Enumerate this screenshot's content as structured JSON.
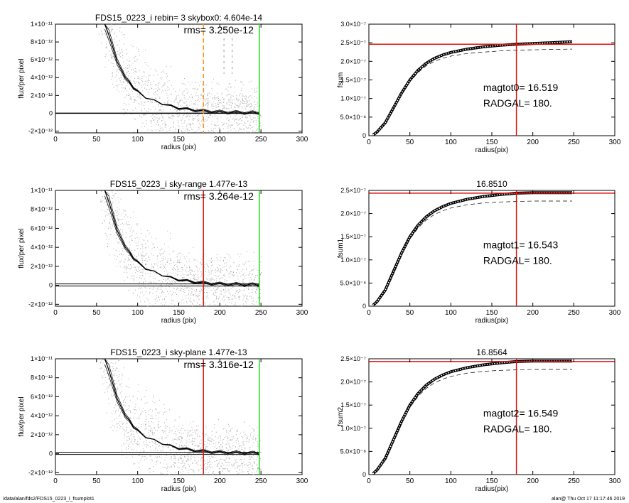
{
  "footer": {
    "left": "/data/alan/fds2/FDS15_0223_i_fsumplot1",
    "right": "alan@  Thu Oct 17 11:17:46 2019"
  },
  "colors": {
    "scatter": "#aaaaaa",
    "orange": "#ff8c1a",
    "green": "#22dd22",
    "red": "#dd1111"
  },
  "chart_data": [
    {
      "type": "scatter",
      "title": "FDS15_0223_i rebin= 3    skybox0:  4.604e-14",
      "annotation": "rms= 3.250e-12",
      "xlabel": "radius (pix)",
      "ylabel": "flux/per pixel",
      "xlim": [
        0,
        300
      ],
      "ylim": [
        -2.2e-12,
        1e-11
      ],
      "xticks": [
        0,
        50,
        100,
        150,
        200,
        250,
        300
      ],
      "yticks": [
        -2e-12,
        0,
        2e-12,
        4e-12,
        6e-12,
        8e-12,
        1e-11
      ],
      "yticklabels": [
        "-2×10⁻¹²",
        "0",
        "2×10⁻¹²",
        "4×10⁻¹²",
        "6×10⁻¹²",
        "8×10⁻¹²",
        "1×10⁻¹¹"
      ],
      "vlines": [
        {
          "x": 180,
          "color": "orange",
          "dashed": true
        },
        {
          "x": 248,
          "color": "green",
          "dashed": false
        }
      ],
      "hline": {
        "y": 0,
        "double": false
      },
      "dashed_marks": [
        205,
        215
      ],
      "profile_points": [
        [
          60,
          1e-11
        ],
        [
          65,
          8.9e-12
        ],
        [
          70,
          7.2e-12
        ],
        [
          75,
          5.9e-12
        ],
        [
          80,
          4.8e-12
        ],
        [
          85,
          4.1e-12
        ],
        [
          90,
          3.4e-12
        ],
        [
          95,
          2.9e-12
        ],
        [
          100,
          2.4e-12
        ],
        [
          110,
          1.8e-12
        ],
        [
          120,
          1.4e-12
        ],
        [
          130,
          1.1e-12
        ],
        [
          140,
          8e-13
        ],
        [
          150,
          6e-13
        ],
        [
          160,
          4.5e-13
        ],
        [
          170,
          3.5e-13
        ],
        [
          180,
          2.5e-13
        ],
        [
          190,
          2e-13
        ],
        [
          200,
          1.5e-13
        ],
        [
          210,
          1.2e-13
        ],
        [
          220,
          1e-13
        ],
        [
          230,
          8e-14
        ],
        [
          240,
          6e-14
        ],
        [
          248,
          5e-14
        ]
      ]
    },
    {
      "type": "line",
      "title": "",
      "annotation_lines": [
        "magtot0=  16.519",
        "RADGAL=    180."
      ],
      "xlabel": "radius(pix)",
      "ylabel": "fsum",
      "xlim": [
        0,
        300
      ],
      "ylim": [
        0,
        3e-07
      ],
      "xticks": [
        0,
        50,
        100,
        150,
        200,
        250,
        300
      ],
      "yticks": [
        0,
        5e-08,
        1e-07,
        1.5e-07,
        2e-07,
        2.5e-07,
        3e-07
      ],
      "yticklabels": [
        "0",
        "5.0×10⁻⁸",
        "1.0×10⁻⁷",
        "1.5×10⁻⁷",
        "2.0×10⁻⁷",
        "2.5×10⁻⁷",
        "3.0×10⁻⁷"
      ],
      "vline_x": 180,
      "hline_y": 2.46e-07,
      "x": [
        5,
        10,
        20,
        30,
        40,
        50,
        60,
        70,
        80,
        90,
        100,
        120,
        140,
        160,
        180,
        200,
        220,
        248
      ],
      "curve": [
        2e-09,
        1e-08,
        3.5e-08,
        7.5e-08,
        1.15e-07,
        1.5e-07,
        1.76e-07,
        1.95e-07,
        2.08e-07,
        2.17e-07,
        2.24e-07,
        2.33e-07,
        2.39e-07,
        2.43e-07,
        2.46e-07,
        2.48e-07,
        2.5e-07,
        2.53e-07
      ],
      "dashed": [
        2e-09,
        1e-08,
        3.4e-08,
        7.3e-08,
        1.12e-07,
        1.45e-07,
        1.7e-07,
        1.88e-07,
        2e-07,
        2.08e-07,
        2.14e-07,
        2.21e-07,
        2.25e-07,
        2.28e-07,
        2.3e-07,
        2.31e-07,
        2.32e-07,
        2.33e-07
      ]
    },
    {
      "type": "scatter",
      "title": "FDS15_0223_i sky-range  1.477e-13",
      "annotation": "rms= 3.264e-12",
      "xlabel": "radius (pix)",
      "ylabel": "flux/per pixel",
      "xlim": [
        0,
        300
      ],
      "ylim": [
        -2.2e-12,
        1e-11
      ],
      "xticks": [
        0,
        50,
        100,
        150,
        200,
        250,
        300
      ],
      "yticks": [
        -2e-12,
        0,
        2e-12,
        4e-12,
        6e-12,
        8e-12,
        1e-11
      ],
      "yticklabels": [
        "-2×10⁻¹²",
        "0",
        "2×10⁻¹²",
        "4×10⁻¹²",
        "6×10⁻¹²",
        "8×10⁻¹²",
        "1×10⁻¹¹"
      ],
      "vlines": [
        {
          "x": 180,
          "color": "red",
          "dashed": false
        },
        {
          "x": 248,
          "color": "green",
          "dashed": false
        }
      ],
      "hline": {
        "y": 0,
        "double": true
      },
      "dashed_marks": [],
      "profile_points": [
        [
          60,
          1e-11
        ],
        [
          65,
          8.9e-12
        ],
        [
          70,
          7.2e-12
        ],
        [
          75,
          5.9e-12
        ],
        [
          80,
          4.8e-12
        ],
        [
          85,
          4.1e-12
        ],
        [
          90,
          3.4e-12
        ],
        [
          95,
          2.9e-12
        ],
        [
          100,
          2.4e-12
        ],
        [
          110,
          1.8e-12
        ],
        [
          120,
          1.4e-12
        ],
        [
          130,
          1.1e-12
        ],
        [
          140,
          8e-13
        ],
        [
          150,
          6e-13
        ],
        [
          160,
          4.5e-13
        ],
        [
          170,
          3.5e-13
        ],
        [
          180,
          2.5e-13
        ],
        [
          190,
          2e-13
        ],
        [
          200,
          1.5e-13
        ],
        [
          210,
          1.2e-13
        ],
        [
          220,
          1e-13
        ],
        [
          230,
          8e-14
        ],
        [
          240,
          6e-14
        ],
        [
          248,
          5e-14
        ]
      ]
    },
    {
      "type": "line",
      "title": "16.8510",
      "annotation_lines": [
        "magtot1=  16.543",
        "RADGAL=    180."
      ],
      "xlabel": "radius(pix)",
      "ylabel": "fsum1",
      "xlim": [
        0,
        300
      ],
      "ylim": [
        0,
        2.5e-07
      ],
      "xticks": [
        0,
        50,
        100,
        150,
        200,
        250,
        300
      ],
      "yticks": [
        0,
        5e-08,
        1e-07,
        1.5e-07,
        2e-07,
        2.5e-07
      ],
      "yticklabels": [
        "0",
        "5.0×10⁻⁸",
        "1.0×10⁻⁷",
        "1.5×10⁻⁷",
        "2.0×10⁻⁷",
        "2.5×10⁻⁷"
      ],
      "vline_x": 180,
      "hline_y": 2.44e-07,
      "x": [
        5,
        10,
        20,
        30,
        40,
        50,
        60,
        70,
        80,
        90,
        100,
        120,
        140,
        160,
        180,
        200,
        220,
        248
      ],
      "curve": [
        2e-09,
        1e-08,
        3.5e-08,
        7.5e-08,
        1.15e-07,
        1.5e-07,
        1.75e-07,
        1.93e-07,
        2.06e-07,
        2.15e-07,
        2.22e-07,
        2.31e-07,
        2.37e-07,
        2.41e-07,
        2.44e-07,
        2.45e-07,
        2.45e-07,
        2.45e-07
      ],
      "dashed": [
        2e-09,
        1e-08,
        3.4e-08,
        7.3e-08,
        1.12e-07,
        1.45e-07,
        1.69e-07,
        1.86e-07,
        1.98e-07,
        2.06e-07,
        2.12e-07,
        2.19e-07,
        2.23e-07,
        2.25e-07,
        2.26e-07,
        2.27e-07,
        2.27e-07,
        2.27e-07
      ]
    },
    {
      "type": "scatter",
      "title": "FDS15_0223_i sky-plane  1.477e-13",
      "annotation": "rms= 3.316e-12",
      "xlabel": "radius (pix)",
      "ylabel": "flux/per pixel",
      "xlim": [
        0,
        300
      ],
      "ylim": [
        -2.2e-12,
        1e-11
      ],
      "xticks": [
        0,
        50,
        100,
        150,
        200,
        250,
        300
      ],
      "yticks": [
        -2e-12,
        0,
        2e-12,
        4e-12,
        6e-12,
        8e-12,
        1e-11
      ],
      "yticklabels": [
        "-2×10⁻¹²",
        "0",
        "2×10⁻¹²",
        "4×10⁻¹²",
        "6×10⁻¹²",
        "8×10⁻¹²",
        "1×10⁻¹¹"
      ],
      "vlines": [
        {
          "x": 180,
          "color": "red",
          "dashed": false
        },
        {
          "x": 248,
          "color": "green",
          "dashed": false
        }
      ],
      "hline": {
        "y": 0,
        "double": true
      },
      "dashed_marks": [],
      "profile_points": [
        [
          60,
          1e-11
        ],
        [
          65,
          8.9e-12
        ],
        [
          70,
          7.2e-12
        ],
        [
          75,
          5.9e-12
        ],
        [
          80,
          4.8e-12
        ],
        [
          85,
          4.1e-12
        ],
        [
          90,
          3.4e-12
        ],
        [
          95,
          2.9e-12
        ],
        [
          100,
          2.4e-12
        ],
        [
          110,
          1.8e-12
        ],
        [
          120,
          1.4e-12
        ],
        [
          130,
          1.1e-12
        ],
        [
          140,
          8e-13
        ],
        [
          150,
          6e-13
        ],
        [
          160,
          4.5e-13
        ],
        [
          170,
          3.5e-13
        ],
        [
          180,
          2.5e-13
        ],
        [
          190,
          2e-13
        ],
        [
          200,
          1.5e-13
        ],
        [
          210,
          1.2e-13
        ],
        [
          220,
          1e-13
        ],
        [
          230,
          8e-14
        ],
        [
          240,
          6e-14
        ],
        [
          248,
          5e-14
        ]
      ]
    },
    {
      "type": "line",
      "title": "16.8564",
      "annotation_lines": [
        "magtot2=  16.549",
        "RADGAL=    180."
      ],
      "xlabel": "radius(pix)",
      "ylabel": "fsum2",
      "xlim": [
        0,
        300
      ],
      "ylim": [
        0,
        2.5e-07
      ],
      "xticks": [
        0,
        50,
        100,
        150,
        200,
        250,
        300
      ],
      "yticks": [
        0,
        5e-08,
        1e-07,
        1.5e-07,
        2e-07,
        2.5e-07
      ],
      "yticklabels": [
        "0",
        "5.0×10⁻⁸",
        "1.0×10⁻⁷",
        "1.5×10⁻⁷",
        "2.0×10⁻⁷",
        "2.5×10⁻⁷"
      ],
      "vline_x": 180,
      "hline_y": 2.44e-07,
      "x": [
        5,
        10,
        20,
        30,
        40,
        50,
        60,
        70,
        80,
        90,
        100,
        120,
        140,
        160,
        180,
        200,
        220,
        248
      ],
      "curve": [
        2e-09,
        1e-08,
        3.5e-08,
        7.5e-08,
        1.15e-07,
        1.5e-07,
        1.75e-07,
        1.93e-07,
        2.06e-07,
        2.15e-07,
        2.22e-07,
        2.31e-07,
        2.37e-07,
        2.41e-07,
        2.44e-07,
        2.45e-07,
        2.45e-07,
        2.45e-07
      ],
      "dashed": [
        2e-09,
        1e-08,
        3.4e-08,
        7.3e-08,
        1.12e-07,
        1.45e-07,
        1.69e-07,
        1.86e-07,
        1.98e-07,
        2.06e-07,
        2.12e-07,
        2.19e-07,
        2.23e-07,
        2.25e-07,
        2.26e-07,
        2.27e-07,
        2.27e-07,
        2.27e-07
      ]
    }
  ]
}
